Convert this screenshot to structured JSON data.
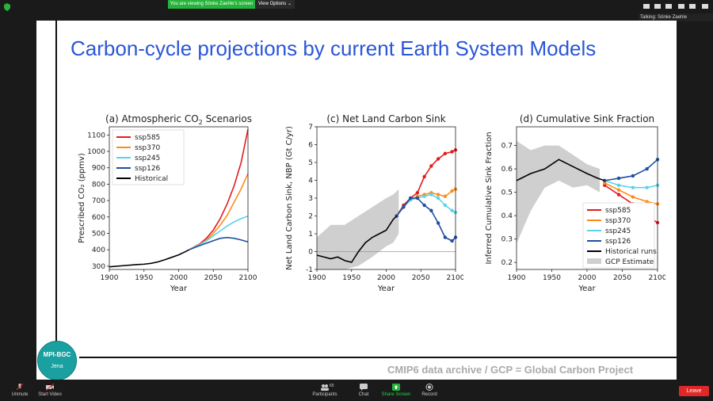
{
  "top": {
    "viewing_banner": "You are viewing Sönke Zaehle's screen",
    "view_options": "View Options",
    "talking": "Talking: Sönke Zaehle"
  },
  "slide": {
    "title": "Carbon-cycle projections by current Earth System Models",
    "caption": "CMIP6 data archive / GCP = Global Carbon Project",
    "logo_line1": "MPI-BGC",
    "logo_line2": "Jena"
  },
  "toolbar": {
    "unmute": "Unmute",
    "start_video": "Start Video",
    "participants": "Participants",
    "participants_count": "65",
    "chat": "Chat",
    "share_screen": "Share Screen",
    "record": "Record",
    "leave": "Leave"
  },
  "colors": {
    "ssp585": "#e41a1c",
    "ssp370": "#ff8c1a",
    "ssp245": "#5bd3e8",
    "ssp126": "#1f4fa0",
    "historical": "#000000",
    "gcp": "#cfcfcf"
  },
  "chart_data": [
    {
      "type": "line",
      "title": "(a) Atmospheric CO",
      "title_sub": "2",
      "title_end": " Scenarios",
      "xlabel": "Year",
      "ylabel": "Prescribed CO₂ (ppmv)",
      "xlim": [
        1900,
        2100
      ],
      "ylim": [
        280,
        1150
      ],
      "xticks": [
        1900,
        1950,
        2000,
        2050,
        2100
      ],
      "yticks": [
        300,
        400,
        500,
        600,
        700,
        800,
        900,
        1000,
        1100
      ],
      "legend": "top-left",
      "series": [
        {
          "name": "ssp585",
          "x": [
            2015,
            2030,
            2040,
            2050,
            2060,
            2070,
            2080,
            2090,
            2100
          ],
          "y": [
            400,
            435,
            470,
            520,
            590,
            680,
            790,
            930,
            1135
          ]
        },
        {
          "name": "ssp370",
          "x": [
            2015,
            2030,
            2040,
            2050,
            2060,
            2070,
            2080,
            2090,
            2100
          ],
          "y": [
            400,
            432,
            460,
            500,
            550,
            610,
            690,
            770,
            865
          ]
        },
        {
          "name": "ssp245",
          "x": [
            2015,
            2030,
            2040,
            2050,
            2060,
            2070,
            2080,
            2090,
            2100
          ],
          "y": [
            400,
            430,
            455,
            485,
            515,
            545,
            570,
            590,
            605
          ]
        },
        {
          "name": "ssp126",
          "x": [
            2015,
            2030,
            2040,
            2050,
            2060,
            2070,
            2080,
            2090,
            2100
          ],
          "y": [
            400,
            425,
            440,
            455,
            470,
            475,
            470,
            460,
            448
          ]
        },
        {
          "name": "Historical",
          "x": [
            1900,
            1920,
            1940,
            1950,
            1960,
            1970,
            1980,
            1990,
            2000,
            2010,
            2015
          ],
          "y": [
            296,
            303,
            310,
            312,
            317,
            326,
            339,
            354,
            369,
            389,
            400
          ]
        }
      ]
    },
    {
      "type": "line",
      "title": "(c) Net Land Carbon Sink",
      "xlabel": "Year",
      "ylabel": "Net Land Carbon Sink, NBP (Gt C/yr)",
      "xlim": [
        1900,
        2100
      ],
      "ylim": [
        -1,
        7
      ],
      "xticks": [
        1900,
        1950,
        2000,
        2050,
        2100
      ],
      "yticks": [
        -1,
        0,
        1,
        2,
        3,
        4,
        5,
        6,
        7
      ],
      "series": [
        {
          "name": "ssp585",
          "x": [
            2015,
            2025,
            2035,
            2045,
            2055,
            2065,
            2075,
            2085,
            2095,
            2100
          ],
          "y": [
            2.0,
            2.6,
            3.0,
            3.3,
            4.2,
            4.8,
            5.2,
            5.5,
            5.6,
            5.7
          ]
        },
        {
          "name": "ssp370",
          "x": [
            2015,
            2025,
            2035,
            2045,
            2055,
            2065,
            2075,
            2085,
            2095,
            2100
          ],
          "y": [
            2.0,
            2.5,
            2.9,
            3.1,
            3.2,
            3.3,
            3.2,
            3.1,
            3.4,
            3.5
          ]
        },
        {
          "name": "ssp245",
          "x": [
            2015,
            2025,
            2035,
            2045,
            2055,
            2065,
            2075,
            2085,
            2095,
            2100
          ],
          "y": [
            2.0,
            2.5,
            2.9,
            3.0,
            3.1,
            3.2,
            3.0,
            2.6,
            2.3,
            2.2
          ]
        },
        {
          "name": "ssp126",
          "x": [
            2015,
            2025,
            2035,
            2045,
            2055,
            2065,
            2075,
            2085,
            2095,
            2100
          ],
          "y": [
            2.0,
            2.5,
            3.0,
            3.0,
            2.6,
            2.3,
            1.6,
            0.8,
            0.6,
            0.8
          ]
        },
        {
          "name": "Historical",
          "x": [
            1900,
            1910,
            1920,
            1930,
            1940,
            1950,
            1960,
            1970,
            1980,
            1990,
            2000,
            2010,
            2015
          ],
          "y": [
            -0.2,
            -0.3,
            -0.4,
            -0.3,
            -0.5,
            -0.6,
            0.0,
            0.5,
            0.8,
            1.0,
            1.2,
            1.8,
            2.0
          ]
        }
      ],
      "band": {
        "name": "GCP Estimate",
        "x": [
          1900,
          1920,
          1940,
          1960,
          1980,
          2000,
          2010,
          2018
        ],
        "lower": [
          -1.0,
          -1.0,
          -1.0,
          -0.8,
          -0.3,
          0.3,
          0.5,
          1.0
        ],
        "upper": [
          0.8,
          1.5,
          1.5,
          2.0,
          2.5,
          3.0,
          3.2,
          3.5
        ]
      }
    },
    {
      "type": "line",
      "title": "(d) Cumulative Sink Fraction",
      "xlabel": "Year",
      "ylabel": "Inferred Cumulative Sink Fraction",
      "xlim": [
        1900,
        2100
      ],
      "ylim": [
        0.17,
        0.78
      ],
      "xticks": [
        1900,
        1950,
        2000,
        2050,
        2100
      ],
      "yticks": [
        0.2,
        0.3,
        0.4,
        0.5,
        0.6,
        0.7
      ],
      "legend": "bottom-right",
      "series": [
        {
          "name": "ssp585",
          "x": [
            2025,
            2045,
            2065,
            2085,
            2100
          ],
          "y": [
            0.53,
            0.49,
            0.45,
            0.4,
            0.37
          ]
        },
        {
          "name": "ssp370",
          "x": [
            2025,
            2045,
            2065,
            2085,
            2100
          ],
          "y": [
            0.54,
            0.51,
            0.48,
            0.46,
            0.45
          ]
        },
        {
          "name": "ssp245",
          "x": [
            2025,
            2045,
            2065,
            2085,
            2100
          ],
          "y": [
            0.55,
            0.53,
            0.52,
            0.52,
            0.53
          ]
        },
        {
          "name": "ssp126",
          "x": [
            2025,
            2045,
            2065,
            2085,
            2100
          ],
          "y": [
            0.55,
            0.56,
            0.57,
            0.6,
            0.64
          ]
        },
        {
          "name": "Historical runs",
          "x": [
            1900,
            1920,
            1940,
            1960,
            1980,
            2000,
            2015,
            2025
          ],
          "y": [
            0.55,
            0.58,
            0.6,
            0.64,
            0.61,
            0.58,
            0.56,
            0.55
          ]
        }
      ],
      "band": {
        "name": "GCP Estimate",
        "x": [
          1900,
          1920,
          1940,
          1960,
          1980,
          2000,
          2018
        ],
        "lower": [
          0.28,
          0.42,
          0.52,
          0.55,
          0.52,
          0.53,
          0.5
        ],
        "upper": [
          0.72,
          0.68,
          0.7,
          0.7,
          0.66,
          0.62,
          0.6
        ]
      }
    }
  ]
}
